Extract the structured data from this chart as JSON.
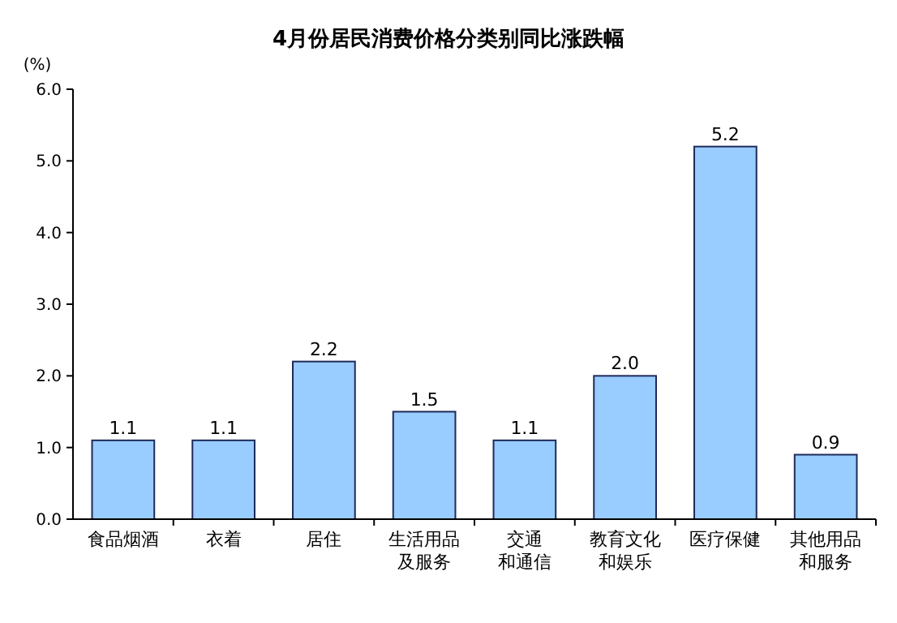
{
  "chart_data": {
    "type": "bar",
    "title": "4月份居民消费价格分类别同比涨跌幅",
    "ylabel": "(%)",
    "categories": [
      "食品烟酒",
      "衣着",
      "居住",
      "生活用品及服务",
      "交通和通信",
      "教育文化和娱乐",
      "医疗保健",
      "其他用品和服务"
    ],
    "values": [
      1.1,
      1.1,
      2.2,
      1.5,
      1.1,
      2.0,
      5.2,
      0.9
    ],
    "value_labels": [
      "1.1",
      "1.1",
      "2.2",
      "1.5",
      "1.1",
      "2.0",
      "5.2",
      "0.9"
    ],
    "color": "#99ccff",
    "ylim": [
      0,
      6
    ],
    "yticks": [
      {
        "value": 0,
        "label": "0.0"
      },
      {
        "value": 1,
        "label": "1.0"
      },
      {
        "value": 2,
        "label": "2.0"
      },
      {
        "value": 3,
        "label": "3.0"
      },
      {
        "value": 4,
        "label": "4.0"
      },
      {
        "value": 5,
        "label": "5.0"
      },
      {
        "value": 6,
        "label": "6.0"
      }
    ],
    "grid": false
  }
}
